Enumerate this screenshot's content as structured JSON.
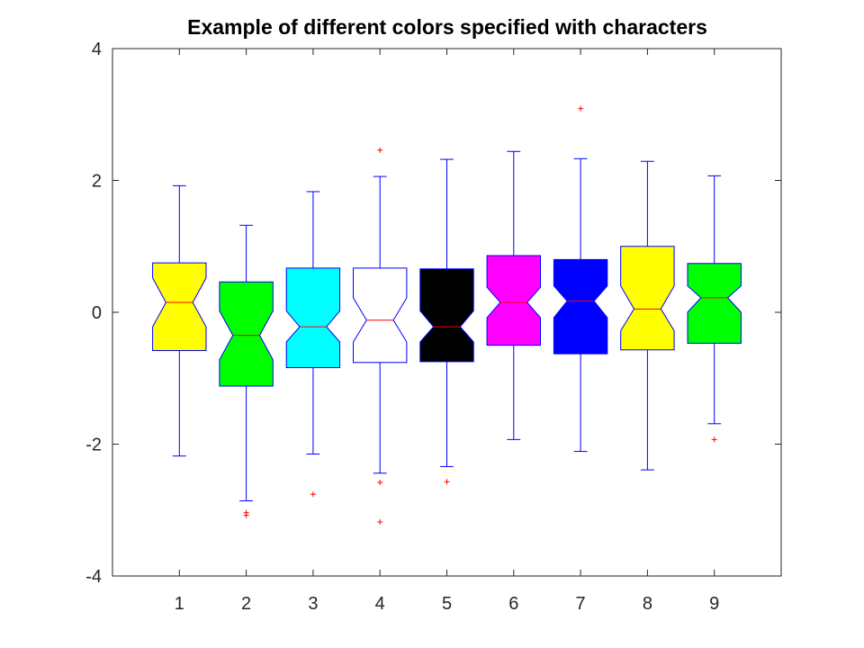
{
  "chart_data": {
    "type": "boxplot",
    "title": "Example of different colors specified with characters",
    "xlabel": "",
    "ylabel": "",
    "ylim": [
      -4,
      4
    ],
    "xlim": [
      0,
      10
    ],
    "yticks": [
      -4,
      -2,
      0,
      2,
      4
    ],
    "grid": false,
    "notched": true,
    "colors": {
      "frame": "#262626",
      "box_edge": "#0000ff",
      "whisker": "#0000ff",
      "median": "#ff0000",
      "outlier": "#ff0000"
    },
    "categories": [
      "1",
      "2",
      "3",
      "4",
      "5",
      "6",
      "7",
      "8",
      "9"
    ],
    "boxes": [
      {
        "label": "1",
        "fill": "#ffff00",
        "q1": -0.58,
        "median": 0.15,
        "q3": 0.75,
        "notch_lo": -0.22,
        "notch_hi": 0.52,
        "whisker_lo": -2.18,
        "whisker_hi": 1.92,
        "outliers": []
      },
      {
        "label": "2",
        "fill": "#00ff00",
        "q1": -1.12,
        "median": -0.35,
        "q3": 0.46,
        "notch_lo": -0.72,
        "notch_hi": 0.02,
        "whisker_lo": -2.86,
        "whisker_hi": 1.32,
        "outliers": [
          -3.04,
          -3.08
        ]
      },
      {
        "label": "3",
        "fill": "#00ffff",
        "q1": -0.84,
        "median": -0.22,
        "q3": 0.67,
        "notch_lo": -0.45,
        "notch_hi": 0.02,
        "whisker_lo": -2.15,
        "whisker_hi": 1.83,
        "outliers": [
          -2.76
        ]
      },
      {
        "label": "4",
        "fill": "#ffffff",
        "q1": -0.76,
        "median": -0.12,
        "q3": 0.67,
        "notch_lo": -0.45,
        "notch_hi": 0.22,
        "whisker_lo": -2.44,
        "whisker_hi": 2.06,
        "outliers": [
          2.46,
          -2.58,
          -3.18
        ]
      },
      {
        "label": "5",
        "fill": "#000000",
        "q1": -0.75,
        "median": -0.22,
        "q3": 0.66,
        "notch_lo": -0.45,
        "notch_hi": 0.02,
        "whisker_lo": -2.34,
        "whisker_hi": 2.32,
        "outliers": [
          -2.57
        ]
      },
      {
        "label": "6",
        "fill": "#ff00ff",
        "q1": -0.5,
        "median": 0.15,
        "q3": 0.86,
        "notch_lo": -0.08,
        "notch_hi": 0.38,
        "whisker_lo": -1.93,
        "whisker_hi": 2.44,
        "outliers": []
      },
      {
        "label": "7",
        "fill": "#0000ff",
        "q1": -0.63,
        "median": 0.17,
        "q3": 0.8,
        "notch_lo": -0.08,
        "notch_hi": 0.4,
        "whisker_lo": -2.11,
        "whisker_hi": 2.33,
        "outliers": [
          3.09
        ]
      },
      {
        "label": "8",
        "fill": "#ffff00",
        "q1": -0.57,
        "median": 0.05,
        "q3": 1.0,
        "notch_lo": -0.28,
        "notch_hi": 0.4,
        "whisker_lo": -2.39,
        "whisker_hi": 2.29,
        "outliers": []
      },
      {
        "label": "9",
        "fill": "#00ff00",
        "q1": -0.47,
        "median": 0.22,
        "q3": 0.74,
        "notch_lo": 0.0,
        "notch_hi": 0.4,
        "whisker_lo": -1.69,
        "whisker_hi": 2.07,
        "outliers": [
          -1.93
        ]
      }
    ]
  }
}
